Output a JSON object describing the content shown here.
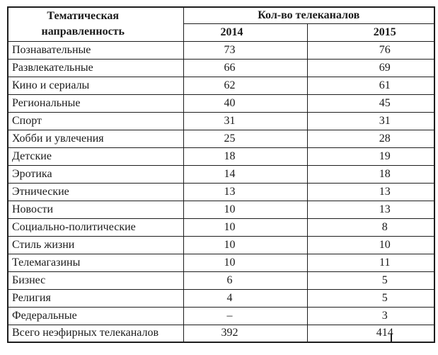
{
  "page": {
    "background": "#ffffff",
    "text_color": "#1a1a1a",
    "border_color": "#1d1d1d"
  },
  "table": {
    "header": {
      "col1": "Тематическая направленность",
      "group": "Кол-во телеканалов",
      "years": [
        "2014",
        "2015"
      ]
    },
    "rows": [
      {
        "label": "Познавательные",
        "y2014": "73",
        "y2015": "76"
      },
      {
        "label": "Развлекательные",
        "y2014": "66",
        "y2015": "69"
      },
      {
        "label": "Кино и сериалы",
        "y2014": "62",
        "y2015": "61"
      },
      {
        "label": "Региональные",
        "y2014": "40",
        "y2015": "45"
      },
      {
        "label": "Спорт",
        "y2014": "31",
        "y2015": "31"
      },
      {
        "label": "Хобби и увлечения",
        "y2014": "25",
        "y2015": "28"
      },
      {
        "label": "Детские",
        "y2014": "18",
        "y2015": "19"
      },
      {
        "label": "Эротика",
        "y2014": "14",
        "y2015": "18"
      },
      {
        "label": "Этнические",
        "y2014": "13",
        "y2015": "13"
      },
      {
        "label": "Новости",
        "y2014": "10",
        "y2015": "13"
      },
      {
        "label": "Социально-политические",
        "y2014": "10",
        "y2015": "8"
      },
      {
        "label": "Стиль жизни",
        "y2014": "10",
        "y2015": "10"
      },
      {
        "label": "Телемагазины",
        "y2014": "10",
        "y2015": "11"
      },
      {
        "label": "Бизнес",
        "y2014": "6",
        "y2015": "5"
      },
      {
        "label": "Религия",
        "y2014": "4",
        "y2015": "5"
      },
      {
        "label": "Федеральные",
        "y2014": "–",
        "y2015": "3"
      },
      {
        "label": "Всего неэфирных телеканалов",
        "y2014": "392",
        "y2015": "414",
        "total": true
      }
    ]
  }
}
